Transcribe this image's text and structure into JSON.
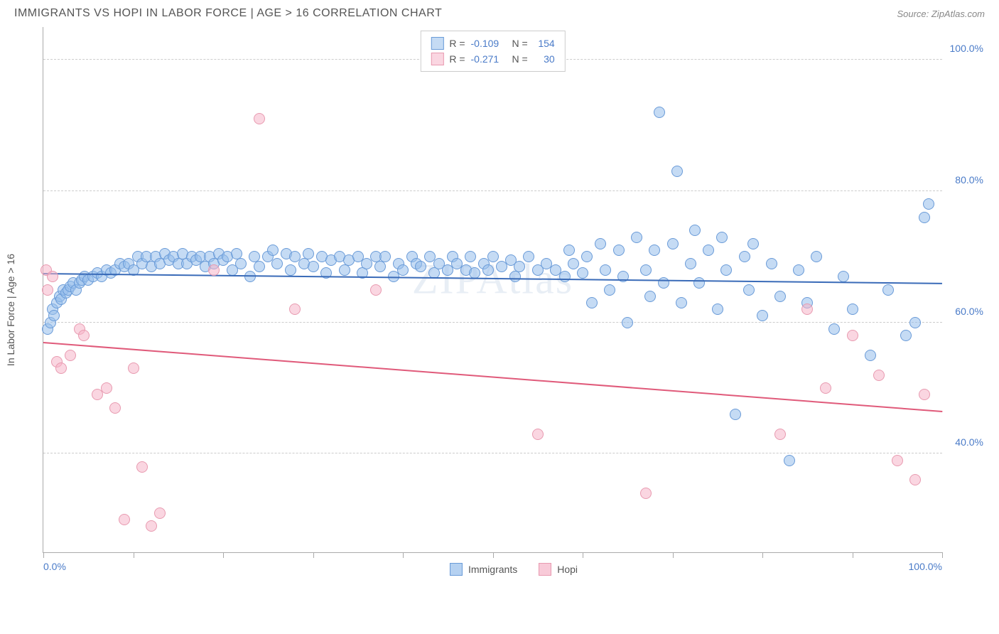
{
  "title": "IMMIGRANTS VS HOPI IN LABOR FORCE | AGE > 16 CORRELATION CHART",
  "source": "Source: ZipAtlas.com",
  "watermark": "ZIPAtlas",
  "y_axis_label": "In Labor Force | Age > 16",
  "chart": {
    "type": "scatter",
    "xlim": [
      0,
      100
    ],
    "ylim": [
      25,
      105
    ],
    "x_ticks": [
      0,
      10,
      20,
      30,
      40,
      50,
      60,
      70,
      80,
      90,
      100
    ],
    "x_tick_labels": {
      "0": "0.0%",
      "100": "100.0%"
    },
    "y_ticks": [
      40,
      60,
      80,
      100
    ],
    "y_tick_labels": {
      "40": "40.0%",
      "60": "60.0%",
      "80": "80.0%",
      "100": "100.0%"
    },
    "background_color": "#ffffff",
    "grid_color": "#cccccc",
    "axis_color": "#aaaaaa",
    "tick_label_color": "#4a7bc8",
    "series": [
      {
        "name": "Immigrants",
        "fill_color": "rgba(150,190,235,0.55)",
        "stroke_color": "#6a9bd8",
        "trend_color": "#3a6bb8",
        "r_value": "-0.109",
        "n_value": "154",
        "marker_radius": 8,
        "trend": {
          "x1": 0,
          "y1": 67.5,
          "x2": 100,
          "y2": 66.0
        },
        "points": [
          [
            0.5,
            59
          ],
          [
            0.8,
            60
          ],
          [
            1.0,
            62
          ],
          [
            1.2,
            61
          ],
          [
            1.5,
            63
          ],
          [
            1.8,
            64
          ],
          [
            2.0,
            63.5
          ],
          [
            2.2,
            65
          ],
          [
            2.5,
            64.5
          ],
          [
            2.8,
            65
          ],
          [
            3.0,
            65.5
          ],
          [
            3.3,
            66
          ],
          [
            3.6,
            65
          ],
          [
            4.0,
            66
          ],
          [
            4.3,
            66.5
          ],
          [
            4.6,
            67
          ],
          [
            5.0,
            66.5
          ],
          [
            5.5,
            67
          ],
          [
            6.0,
            67.5
          ],
          [
            6.5,
            67
          ],
          [
            7.0,
            68
          ],
          [
            7.5,
            67.5
          ],
          [
            8.0,
            68
          ],
          [
            8.5,
            69
          ],
          [
            9.0,
            68.5
          ],
          [
            9.5,
            69
          ],
          [
            10.0,
            68
          ],
          [
            10.5,
            70
          ],
          [
            11.0,
            69
          ],
          [
            11.5,
            70
          ],
          [
            12.0,
            68.5
          ],
          [
            12.5,
            70
          ],
          [
            13.0,
            69
          ],
          [
            13.5,
            70.5
          ],
          [
            14.0,
            69.5
          ],
          [
            14.5,
            70
          ],
          [
            15.0,
            69
          ],
          [
            15.5,
            70.5
          ],
          [
            16.0,
            69
          ],
          [
            16.5,
            70
          ],
          [
            17.0,
            69.5
          ],
          [
            17.5,
            70
          ],
          [
            18.0,
            68.5
          ],
          [
            18.5,
            70
          ],
          [
            19.0,
            69
          ],
          [
            19.5,
            70.5
          ],
          [
            20.0,
            69.5
          ],
          [
            20.5,
            70
          ],
          [
            21.0,
            68
          ],
          [
            21.5,
            70.5
          ],
          [
            22.0,
            69
          ],
          [
            23.0,
            67
          ],
          [
            23.5,
            70
          ],
          [
            24.0,
            68.5
          ],
          [
            25.0,
            70
          ],
          [
            25.5,
            71
          ],
          [
            26.0,
            69
          ],
          [
            27.0,
            70.5
          ],
          [
            27.5,
            68
          ],
          [
            28.0,
            70
          ],
          [
            29.0,
            69
          ],
          [
            29.5,
            70.5
          ],
          [
            30.0,
            68.5
          ],
          [
            31.0,
            70
          ],
          [
            31.5,
            67.5
          ],
          [
            32.0,
            69.5
          ],
          [
            33.0,
            70
          ],
          [
            33.5,
            68
          ],
          [
            34.0,
            69.5
          ],
          [
            35.0,
            70
          ],
          [
            35.5,
            67.5
          ],
          [
            36.0,
            69
          ],
          [
            37.0,
            70
          ],
          [
            37.5,
            68.5
          ],
          [
            38.0,
            70
          ],
          [
            39.0,
            67
          ],
          [
            39.5,
            69
          ],
          [
            40.0,
            68
          ],
          [
            41.0,
            70
          ],
          [
            41.5,
            69
          ],
          [
            42.0,
            68.5
          ],
          [
            43.0,
            70
          ],
          [
            43.5,
            67.5
          ],
          [
            44.0,
            69
          ],
          [
            45.0,
            68
          ],
          [
            45.5,
            70
          ],
          [
            46.0,
            69
          ],
          [
            47.0,
            68
          ],
          [
            47.5,
            70
          ],
          [
            48.0,
            67.5
          ],
          [
            49.0,
            69
          ],
          [
            49.5,
            68
          ],
          [
            50.0,
            70
          ],
          [
            51.0,
            68.5
          ],
          [
            52.0,
            69.5
          ],
          [
            52.5,
            67
          ],
          [
            53.0,
            68.5
          ],
          [
            54.0,
            70
          ],
          [
            55.0,
            68
          ],
          [
            56.0,
            69
          ],
          [
            57.0,
            68
          ],
          [
            58.0,
            67
          ],
          [
            58.5,
            71
          ],
          [
            59.0,
            69
          ],
          [
            60.0,
            67.5
          ],
          [
            60.5,
            70
          ],
          [
            61.0,
            63
          ],
          [
            62.0,
            72
          ],
          [
            62.5,
            68
          ],
          [
            63.0,
            65
          ],
          [
            64.0,
            71
          ],
          [
            64.5,
            67
          ],
          [
            65.0,
            60
          ],
          [
            66.0,
            73
          ],
          [
            67.0,
            68
          ],
          [
            67.5,
            64
          ],
          [
            68.0,
            71
          ],
          [
            68.5,
            92
          ],
          [
            69.0,
            66
          ],
          [
            70.0,
            72
          ],
          [
            70.5,
            83
          ],
          [
            71.0,
            63
          ],
          [
            72.0,
            69
          ],
          [
            72.5,
            74
          ],
          [
            73.0,
            66
          ],
          [
            74.0,
            71
          ],
          [
            75.0,
            62
          ],
          [
            75.5,
            73
          ],
          [
            76.0,
            68
          ],
          [
            77.0,
            46
          ],
          [
            78.0,
            70
          ],
          [
            78.5,
            65
          ],
          [
            79.0,
            72
          ],
          [
            80.0,
            61
          ],
          [
            81.0,
            69
          ],
          [
            82.0,
            64
          ],
          [
            83.0,
            39
          ],
          [
            84.0,
            68
          ],
          [
            85.0,
            63
          ],
          [
            86.0,
            70
          ],
          [
            88.0,
            59
          ],
          [
            89.0,
            67
          ],
          [
            90.0,
            62
          ],
          [
            92.0,
            55
          ],
          [
            94.0,
            65
          ],
          [
            96.0,
            58
          ],
          [
            97.0,
            60
          ],
          [
            98.0,
            76
          ],
          [
            98.5,
            78
          ]
        ]
      },
      {
        "name": "Hopi",
        "fill_color": "rgba(245,180,200,0.55)",
        "stroke_color": "#e89ab0",
        "trend_color": "#e05a7a",
        "r_value": "-0.271",
        "n_value": "30",
        "marker_radius": 8,
        "trend": {
          "x1": 0,
          "y1": 57.0,
          "x2": 100,
          "y2": 46.5
        },
        "points": [
          [
            0.3,
            68
          ],
          [
            0.5,
            65
          ],
          [
            1.0,
            67
          ],
          [
            1.5,
            54
          ],
          [
            2.0,
            53
          ],
          [
            3.0,
            55
          ],
          [
            4.0,
            59
          ],
          [
            4.5,
            58
          ],
          [
            6.0,
            49
          ],
          [
            7.0,
            50
          ],
          [
            8.0,
            47
          ],
          [
            9.0,
            30
          ],
          [
            10.0,
            53
          ],
          [
            11.0,
            38
          ],
          [
            12.0,
            29
          ],
          [
            13.0,
            31
          ],
          [
            19.0,
            68
          ],
          [
            24.0,
            91
          ],
          [
            28.0,
            62
          ],
          [
            37.0,
            65
          ],
          [
            55.0,
            43
          ],
          [
            67.0,
            34
          ],
          [
            82.0,
            43
          ],
          [
            85.0,
            62
          ],
          [
            87.0,
            50
          ],
          [
            90.0,
            58
          ],
          [
            93.0,
            52
          ],
          [
            95.0,
            39
          ],
          [
            97.0,
            36
          ],
          [
            98.0,
            49
          ]
        ]
      }
    ]
  },
  "legend_top": {
    "r_label": "R =",
    "n_label": "N ="
  },
  "legend_bottom": [
    {
      "label": "Immigrants",
      "fill": "rgba(150,190,235,0.7)",
      "border": "#6a9bd8"
    },
    {
      "label": "Hopi",
      "fill": "rgba(245,180,200,0.7)",
      "border": "#e89ab0"
    }
  ]
}
